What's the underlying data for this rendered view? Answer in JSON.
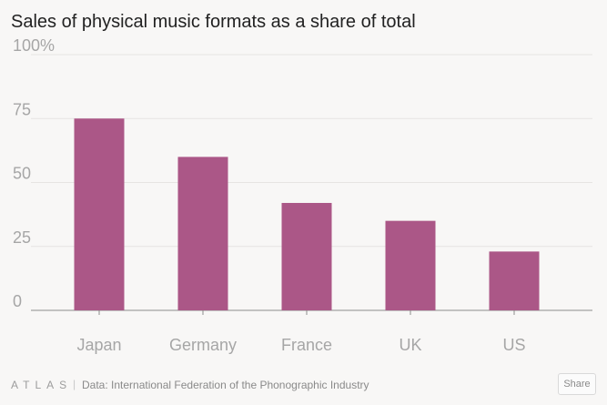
{
  "title": "Sales of physical music formats as a share of total",
  "chart_data": {
    "type": "bar",
    "title": "Sales of physical music formats as a share of total",
    "categories": [
      "Japan",
      "Germany",
      "France",
      "UK",
      "US"
    ],
    "values": [
      75,
      60,
      42,
      35,
      23
    ],
    "ylim": [
      0,
      100
    ],
    "yticks": [
      0,
      25,
      50,
      75,
      100
    ],
    "ytick_labels": [
      "0",
      "25",
      "50",
      "75",
      "100%"
    ],
    "grid": true,
    "bar_color": "#ab5787"
  },
  "footer": {
    "logo": "ATLAS",
    "source": "Data: International Federation of the Phonographic Industry",
    "share_label": "Share"
  }
}
